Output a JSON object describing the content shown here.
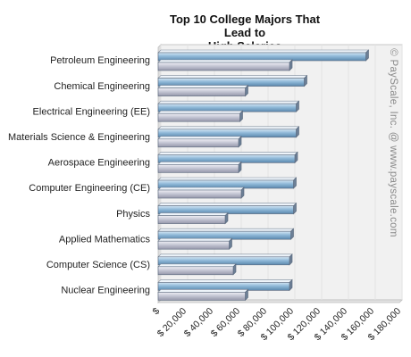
{
  "chart_data": {
    "type": "bar",
    "orientation": "horizontal",
    "title_line1": "Top 10 College Majors That Lead to",
    "title_line2": "High Salaries",
    "categories": [
      "Petroleum Engineering",
      "Chemical Engineering",
      "Electrical Engineering (EE)",
      "Materials Science & Engineering",
      "Aerospace Engineering",
      "Computer Engineering (CE)",
      "Physics",
      "Applied Mathematics",
      "Computer Science (CS)",
      "Nuclear Engineering"
    ],
    "series": [
      {
        "values": [
          155000,
          109000,
          103000,
          103000,
          102000,
          101000,
          101000,
          99000,
          98000,
          98000
        ],
        "color": "#8fb8d8"
      },
      {
        "values": [
          98000,
          65000,
          61000,
          60000,
          60000,
          62000,
          50000,
          53000,
          56000,
          65000
        ],
        "color": "#c0c2cf"
      }
    ],
    "x_ticks": [
      "$",
      "$ 20,000",
      "$ 40,000",
      "$ 60,000",
      "$ 80,000",
      "$ 100,000",
      "$ 120,000",
      "$ 140,000",
      "$ 160,000",
      "$ 180,000"
    ],
    "xlim": [
      0,
      180000
    ],
    "grid": "vertical",
    "watermark": "© PayScale, Inc. @ www.payscale.com"
  }
}
